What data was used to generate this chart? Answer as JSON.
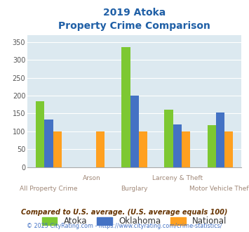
{
  "title_line1": "2019 Atoka",
  "title_line2": "Property Crime Comparison",
  "categories": [
    "All Property Crime",
    "Arson",
    "Burglary",
    "Larceny & Theft",
    "Motor Vehicle Theft"
  ],
  "series": {
    "Atoka": [
      185,
      0,
      336,
      161,
      117
    ],
    "Oklahoma": [
      133,
      0,
      199,
      119,
      153
    ],
    "National": [
      100,
      100,
      100,
      100,
      100
    ]
  },
  "colors": {
    "Atoka": "#7dc832",
    "Oklahoma": "#4472c4",
    "National": "#ffa020"
  },
  "ylim": [
    0,
    370
  ],
  "yticks": [
    0,
    50,
    100,
    150,
    200,
    250,
    300,
    350
  ],
  "background_color": "#dce9f0",
  "title_color": "#1f5fa6",
  "xlabel_color": "#a08878",
  "footnote1": "Compared to U.S. average. (U.S. average equals 100)",
  "footnote2_pre": "© 2025 CityRating.com - ",
  "footnote2_link": "https://www.cityrating.com/crime-statistics/",
  "footnote1_color": "#663300",
  "footnote2_color": "#555555",
  "footnote2_link_color": "#4472c4"
}
